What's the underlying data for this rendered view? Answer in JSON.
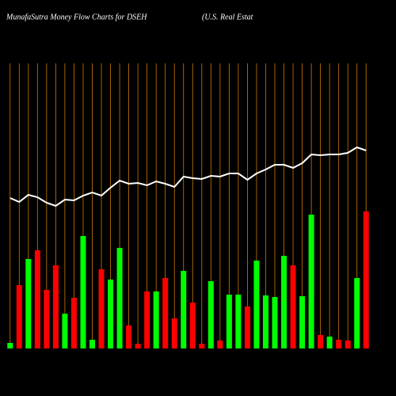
{
  "chart_data": {
    "type": "bar",
    "title": "MunafaSutra  Money Flow  Charts for DSEH",
    "subtitle": "(U.S. Real Estat",
    "categories": [
      null,
      null,
      null,
      null,
      null,
      null,
      null,
      null,
      null,
      null,
      null,
      null,
      null,
      null,
      null,
      null,
      null,
      null,
      null,
      null,
      null,
      null,
      null,
      null,
      null,
      null,
      null,
      null,
      null,
      null,
      null,
      null,
      null,
      null,
      null,
      null,
      null,
      null,
      null,
      null
    ],
    "series": [
      {
        "color": "#ff0000",
        "up_color": "#00ff00",
        "directions": [
          "up",
          "down",
          "up",
          "down",
          "down",
          "down",
          "up",
          "down",
          "up",
          "up",
          "down",
          "up",
          "up",
          "down",
          "down",
          "down",
          "up",
          "down",
          "down",
          "up",
          "down",
          "down",
          "up",
          "down",
          "up",
          "up",
          "down",
          "up",
          "up",
          "up",
          "up",
          "down",
          "up",
          "up",
          "down",
          "up",
          "down",
          "down",
          "up",
          "down"
        ],
        "values": [
          7,
          80,
          113,
          124,
          74,
          105,
          44,
          64,
          142,
          11,
          100,
          87,
          127,
          29,
          6,
          72,
          72,
          89,
          38,
          98,
          58,
          6,
          85,
          10,
          68,
          68,
          53,
          111,
          67,
          65,
          117,
          105,
          66,
          169,
          17,
          15,
          11,
          10,
          89,
          173
        ]
      },
      {
        "type": "line",
        "color": "#ffffff",
        "values": [
          190,
          185,
          194,
          191,
          184,
          180,
          188,
          187,
          193,
          197,
          193,
          203,
          212,
          208,
          209,
          206,
          211,
          208,
          204,
          217,
          215,
          214,
          218,
          217,
          221,
          221,
          213,
          221,
          226,
          232,
          232,
          228,
          234,
          245,
          244,
          245,
          245,
          247,
          254,
          250
        ]
      }
    ],
    "ylim": [
      0,
      360
    ],
    "gridline_color": "#cc7a00"
  }
}
